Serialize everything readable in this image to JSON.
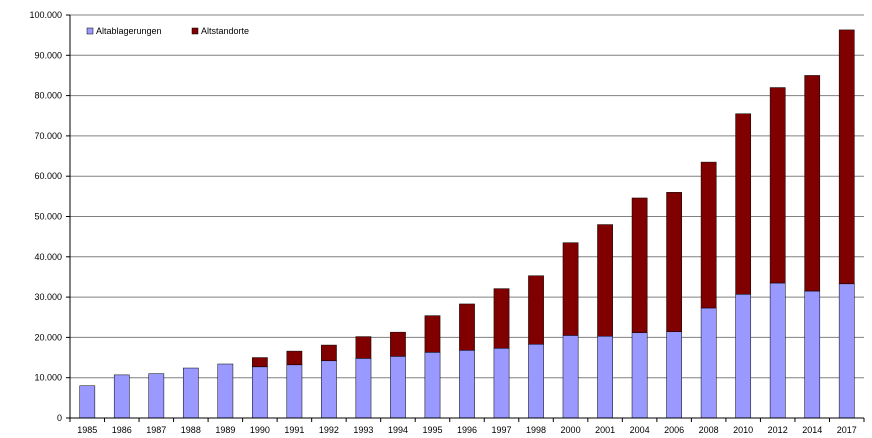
{
  "chart_data": {
    "type": "bar",
    "stacked": true,
    "title": "",
    "xlabel": "",
    "ylabel": "",
    "ylim": [
      0,
      100000
    ],
    "y_ticks": [
      0,
      10000,
      20000,
      30000,
      40000,
      50000,
      60000,
      70000,
      80000,
      90000,
      100000
    ],
    "y_tick_labels": [
      "0",
      "10.000",
      "20.000",
      "30.000",
      "40.000",
      "50.000",
      "60.000",
      "70.000",
      "80.000",
      "90.000",
      "100.000"
    ],
    "grid": true,
    "legend_position": "top-left",
    "categories": [
      "1985",
      "1986",
      "1987",
      "1988",
      "1989",
      "1990",
      "1991",
      "1992",
      "1993",
      "1994",
      "1995",
      "1996",
      "1997",
      "1998",
      "2000",
      "2001",
      "2004",
      "2006",
      "2008",
      "2010",
      "2012",
      "2014",
      "2017"
    ],
    "series": [
      {
        "name": "Altablagerungen",
        "color": "#9999ff",
        "values": [
          8000,
          10700,
          11000,
          12400,
          13400,
          12700,
          13200,
          14200,
          14800,
          15300,
          16300,
          16800,
          17300,
          18300,
          20500,
          20300,
          21200,
          21400,
          27300,
          30700,
          33500,
          31500,
          33300
        ]
      },
      {
        "name": "Altstandorte",
        "color": "#800000",
        "values": [
          0,
          0,
          0,
          0,
          0,
          2300,
          3400,
          3900,
          5400,
          6000,
          9100,
          11500,
          14800,
          17000,
          23000,
          27700,
          33400,
          34600,
          36200,
          44800,
          48500,
          53500,
          63000
        ]
      }
    ]
  }
}
